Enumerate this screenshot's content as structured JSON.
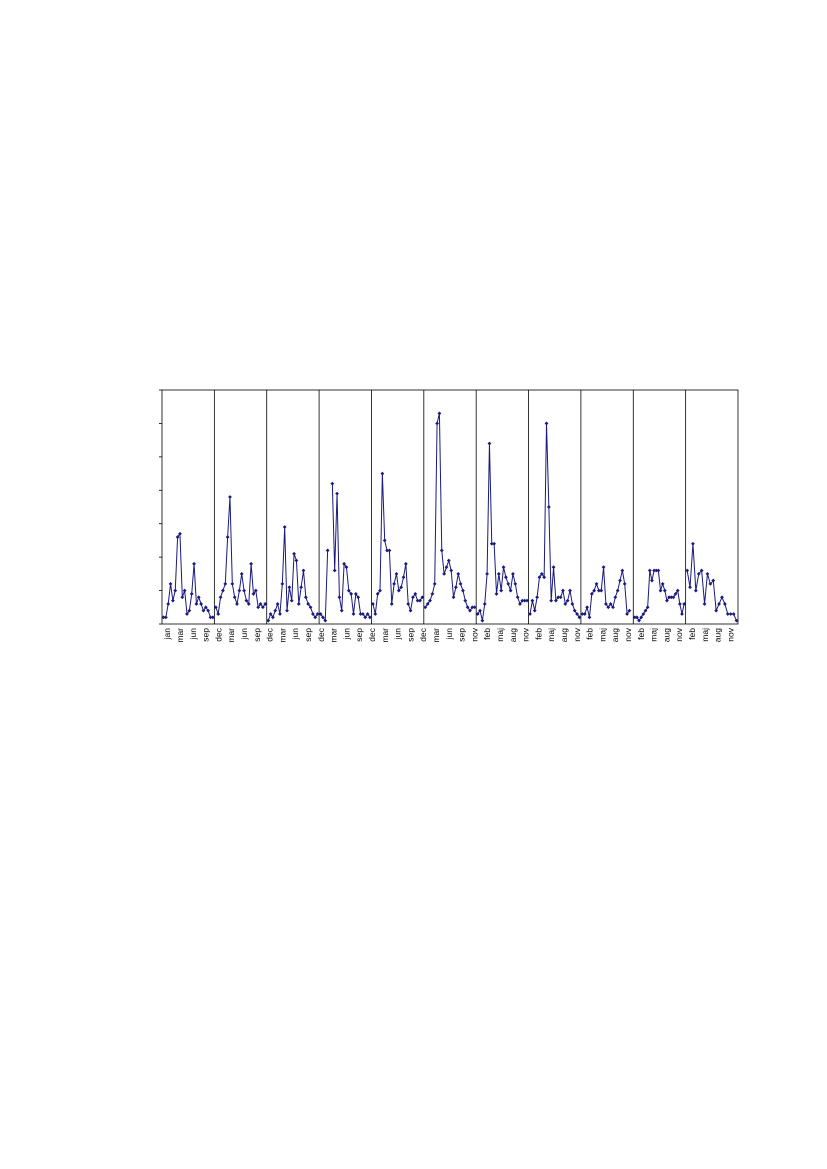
{
  "chart_data": {
    "type": "line",
    "title": "",
    "xlabel": "",
    "ylabel": "",
    "ylim": [
      0,
      7
    ],
    "grid": false,
    "legend": "none",
    "line_color": "#1a1a7e",
    "marker_color": "#1a1a7e",
    "marker": "diamond",
    "x_tick_labels": [
      "jan",
      "mar",
      "jun",
      "sep",
      "dec",
      "mar",
      "jun",
      "sep",
      "dec",
      "mar",
      "jun",
      "sep",
      "dec",
      "mar",
      "jun",
      "sep",
      "dec",
      "mar",
      "jun",
      "sep",
      "dec",
      "mar",
      "jun",
      "sep",
      "nov",
      "feb",
      "maj",
      "aug",
      "nov",
      "feb",
      "maj",
      "aug",
      "nov",
      "feb",
      "maj",
      "aug",
      "nov",
      "feb",
      "maj",
      "aug",
      "nov",
      "feb",
      "maj",
      "aug",
      "nov"
    ],
    "panels": [
      {
        "values": [
          0.2,
          0.2,
          0.6,
          1.2,
          0.7,
          1.0,
          2.6,
          2.7,
          0.8,
          1.0,
          0.3,
          0.4,
          0.9,
          1.8,
          0.6,
          0.8,
          0.6,
          0.4,
          0.5,
          0.4,
          0.2,
          0.2
        ]
      },
      {
        "values": [
          0.5,
          0.3,
          0.8,
          1.0,
          1.2,
          2.6,
          3.8,
          1.2,
          0.8,
          0.6,
          1.0,
          1.5,
          1.0,
          0.7,
          0.6,
          1.8,
          0.9,
          1.0,
          0.5,
          0.6,
          0.5,
          0.6
        ]
      },
      {
        "values": [
          0.1,
          0.3,
          0.2,
          0.4,
          0.6,
          0.3,
          1.2,
          2.9,
          0.4,
          1.1,
          0.7,
          2.1,
          1.9,
          0.6,
          1.1,
          1.6,
          0.8,
          0.6,
          0.5,
          0.3,
          0.2,
          0.3
        ]
      },
      {
        "values": [
          0.3,
          0.2,
          0.1,
          2.2,
          null,
          4.2,
          1.6,
          3.9,
          0.8,
          0.4,
          1.8,
          1.7,
          1.0,
          0.9,
          0.3,
          0.9,
          0.8,
          0.3,
          0.3,
          0.2,
          0.3,
          0.2
        ]
      },
      {
        "values": [
          0.6,
          0.3,
          0.9,
          1.0,
          4.5,
          2.5,
          2.2,
          2.2,
          0.6,
          1.2,
          1.5,
          1.0,
          1.1,
          1.4,
          1.8,
          0.6,
          0.4,
          0.8,
          0.9,
          0.7,
          0.7,
          0.8
        ]
      },
      {
        "values": [
          0.5,
          0.6,
          0.7,
          0.9,
          1.2,
          6.0,
          6.3,
          2.2,
          1.5,
          1.7,
          1.9,
          1.6,
          0.8,
          1.1,
          1.5,
          1.2,
          1.0,
          0.7,
          0.5,
          0.4,
          0.5,
          0.5
        ]
      },
      {
        "values": [
          0.3,
          0.4,
          0.1,
          0.6,
          1.5,
          5.4,
          2.4,
          2.4,
          0.9,
          1.5,
          1.0,
          1.7,
          1.4,
          1.2,
          1.0,
          1.5,
          1.2,
          0.8,
          0.6,
          0.7,
          0.7,
          0.7
        ]
      },
      {
        "values": [
          0.3,
          0.7,
          0.4,
          0.8,
          1.4,
          1.5,
          1.4,
          6.0,
          3.5,
          0.7,
          1.7,
          0.7,
          0.8,
          0.8,
          1.0,
          0.6,
          0.7,
          1.0,
          0.6,
          0.4,
          0.3,
          0.2
        ]
      },
      {
        "values": [
          0.3,
          0.3,
          0.5,
          0.2,
          0.9,
          1.0,
          1.2,
          1.0,
          1.0,
          1.7,
          0.6,
          0.5,
          0.6,
          0.5,
          0.8,
          1.0,
          1.3,
          1.6,
          1.2,
          0.3,
          0.4,
          null
        ]
      },
      {
        "values": [
          0.2,
          0.2,
          0.1,
          0.2,
          0.3,
          0.4,
          0.5,
          1.6,
          1.3,
          1.6,
          1.6,
          1.6,
          1.0,
          1.2,
          1.0,
          0.7,
          0.8,
          0.8,
          0.8,
          0.9,
          1.0,
          0.6,
          0.3,
          0.6
        ]
      },
      {
        "values": [
          1.6,
          1.1,
          2.4,
          1.0,
          1.5,
          1.6,
          0.6,
          1.5,
          1.2,
          1.3,
          0.4,
          0.6,
          0.8,
          0.6,
          0.3,
          0.3,
          0.3,
          0.1
        ]
      }
    ]
  }
}
